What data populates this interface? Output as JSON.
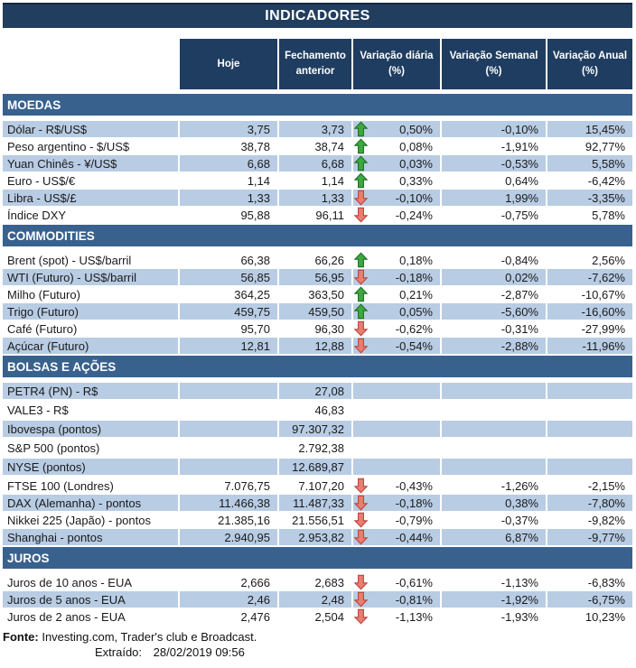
{
  "title": "INDICADORES",
  "chart_data": {
    "type": "table",
    "title": "INDICADORES",
    "columns": [
      "Hoje",
      "Fechamento anterior",
      "Variação diária (%)",
      "Variação Semanal (%)",
      "Variação Anual (%)"
    ],
    "sections": [
      {
        "name": "MOEDAS",
        "first_row_shaded": true,
        "rows": [
          {
            "label": "Dólar - R$/US$",
            "hoje": "3,75",
            "fechamento": "3,73",
            "arrow": "up",
            "diaria": "0,50%",
            "semanal": "-0,10%",
            "anual": "15,45%"
          },
          {
            "label": "Peso argentino - $/US$",
            "hoje": "38,78",
            "fechamento": "38,74",
            "arrow": "up",
            "diaria": "0,08%",
            "semanal": "-1,91%",
            "anual": "92,77%"
          },
          {
            "label": "Yuan Chinês - ¥/US$",
            "hoje": "6,68",
            "fechamento": "6,68",
            "arrow": "up",
            "diaria": "0,03%",
            "semanal": "-0,53%",
            "anual": "5,58%"
          },
          {
            "label": "Euro - US$/€",
            "hoje": "1,14",
            "fechamento": "1,14",
            "arrow": "up",
            "diaria": "0,33%",
            "semanal": "0,64%",
            "anual": "-6,42%"
          },
          {
            "label": "Libra - US$/£",
            "hoje": "1,33",
            "fechamento": "1,33",
            "arrow": "down",
            "diaria": "-0,10%",
            "semanal": "1,99%",
            "anual": "-3,35%"
          },
          {
            "label": "Índice DXY",
            "hoje": "95,88",
            "fechamento": "96,11",
            "arrow": "down",
            "diaria": "-0,24%",
            "semanal": "-0,75%",
            "anual": "5,78%"
          }
        ]
      },
      {
        "name": "COMMODITIES",
        "first_row_shaded": false,
        "rows": [
          {
            "label": "Brent (spot) - US$/barril",
            "hoje": "66,38",
            "fechamento": "66,26",
            "arrow": "up",
            "diaria": "0,18%",
            "semanal": "-0,84%",
            "anual": "2,56%"
          },
          {
            "label": "WTI (Futuro) - US$/barril",
            "hoje": "56,85",
            "fechamento": "56,95",
            "arrow": "down",
            "diaria": "-0,18%",
            "semanal": "0,02%",
            "anual": "-7,62%"
          },
          {
            "label": "Milho (Futuro)",
            "hoje": "364,25",
            "fechamento": "363,50",
            "arrow": "up",
            "diaria": "0,21%",
            "semanal": "-2,87%",
            "anual": "-10,67%"
          },
          {
            "label": "Trigo (Futuro)",
            "hoje": "459,75",
            "fechamento": "459,50",
            "arrow": "up",
            "diaria": "0,05%",
            "semanal": "-5,60%",
            "anual": "-16,60%"
          },
          {
            "label": "Café (Futuro)",
            "hoje": "95,70",
            "fechamento": "96,30",
            "arrow": "down",
            "diaria": "-0,62%",
            "semanal": "-0,31%",
            "anual": "-27,99%"
          },
          {
            "label": "Açúcar (Futuro)",
            "hoje": "12,81",
            "fechamento": "12,88",
            "arrow": "down",
            "diaria": "-0,54%",
            "semanal": "-2,88%",
            "anual": "-11,96%"
          }
        ]
      },
      {
        "name": "BOLSAS E AÇÕES",
        "first_row_shaded": true,
        "rows": [
          {
            "label": "PETR4 (PN) - R$",
            "hoje": "",
            "fechamento": "27,08",
            "arrow": null,
            "diaria": "",
            "semanal": "",
            "anual": ""
          },
          {
            "label": "VALE3 - R$",
            "hoje": "",
            "fechamento": "46,83",
            "arrow": null,
            "diaria": "",
            "semanal": "",
            "anual": ""
          },
          {
            "label": "Ibovespa (pontos)",
            "hoje": "",
            "fechamento": "97.307,32",
            "arrow": null,
            "diaria": "",
            "semanal": "",
            "anual": ""
          },
          {
            "label": "S&P 500 (pontos)",
            "hoje": "",
            "fechamento": "2.792,38",
            "arrow": null,
            "diaria": "",
            "semanal": "",
            "anual": ""
          },
          {
            "label": "NYSE (pontos)",
            "hoje": "",
            "fechamento": "12.689,87",
            "arrow": null,
            "diaria": "",
            "semanal": "",
            "anual": ""
          },
          {
            "label": "FTSE 100 (Londres)",
            "hoje": "7.076,75",
            "fechamento": "7.107,20",
            "arrow": "down",
            "diaria": "-0,43%",
            "semanal": "-1,26%",
            "anual": "-2,15%"
          },
          {
            "label": "DAX (Alemanha) - pontos",
            "hoje": "11.466,38",
            "fechamento": "11.487,33",
            "arrow": "down",
            "diaria": "-0,18%",
            "semanal": "0,38%",
            "anual": "-7,80%"
          },
          {
            "label": "Nikkei 225 (Japão) - pontos",
            "hoje": "21.385,16",
            "fechamento": "21.556,51",
            "arrow": "down",
            "diaria": "-0,79%",
            "semanal": "-0,37%",
            "anual": "-9,82%"
          },
          {
            "label": "Shanghai - pontos",
            "hoje": "2.940,95",
            "fechamento": "2.953,82",
            "arrow": "down",
            "diaria": "-0,44%",
            "semanal": "6,87%",
            "anual": "-9,77%"
          }
        ]
      },
      {
        "name": "JUROS",
        "first_row_shaded": false,
        "rows": [
          {
            "label": "Juros de 10 anos - EUA",
            "hoje": "2,666",
            "fechamento": "2,683",
            "arrow": "down",
            "diaria": "-0,61%",
            "semanal": "-1,13%",
            "anual": "-6,83%"
          },
          {
            "label": "Juros de 5 anos - EUA",
            "hoje": "2,46",
            "fechamento": "2,48",
            "arrow": "down",
            "diaria": "-0,81%",
            "semanal": "-1,92%",
            "anual": "-6,75%"
          },
          {
            "label": "Juros de 2 anos - EUA",
            "hoje": "2,476",
            "fechamento": "2,504",
            "arrow": "down",
            "diaria": "-1,13%",
            "semanal": "-1,93%",
            "anual": "10,23%"
          }
        ]
      }
    ]
  },
  "footer": {
    "fonte_label": "Fonte:",
    "fonte_text": "Investing.com, Trader's club e Broadcast.",
    "extraido_label": "Extraído:",
    "extraido_value": "28/02/2019 09:56"
  },
  "colors": {
    "title_bar": "#223E5F",
    "header_cell": "#1F3D60",
    "section_bar": "#39618E",
    "row_shade": "#B8CCE4",
    "arrow_up_fill": "#3EA842",
    "arrow_up_border": "#1E6F23",
    "arrow_down_fill": "#E87E72",
    "arrow_down_border": "#BB4439"
  }
}
